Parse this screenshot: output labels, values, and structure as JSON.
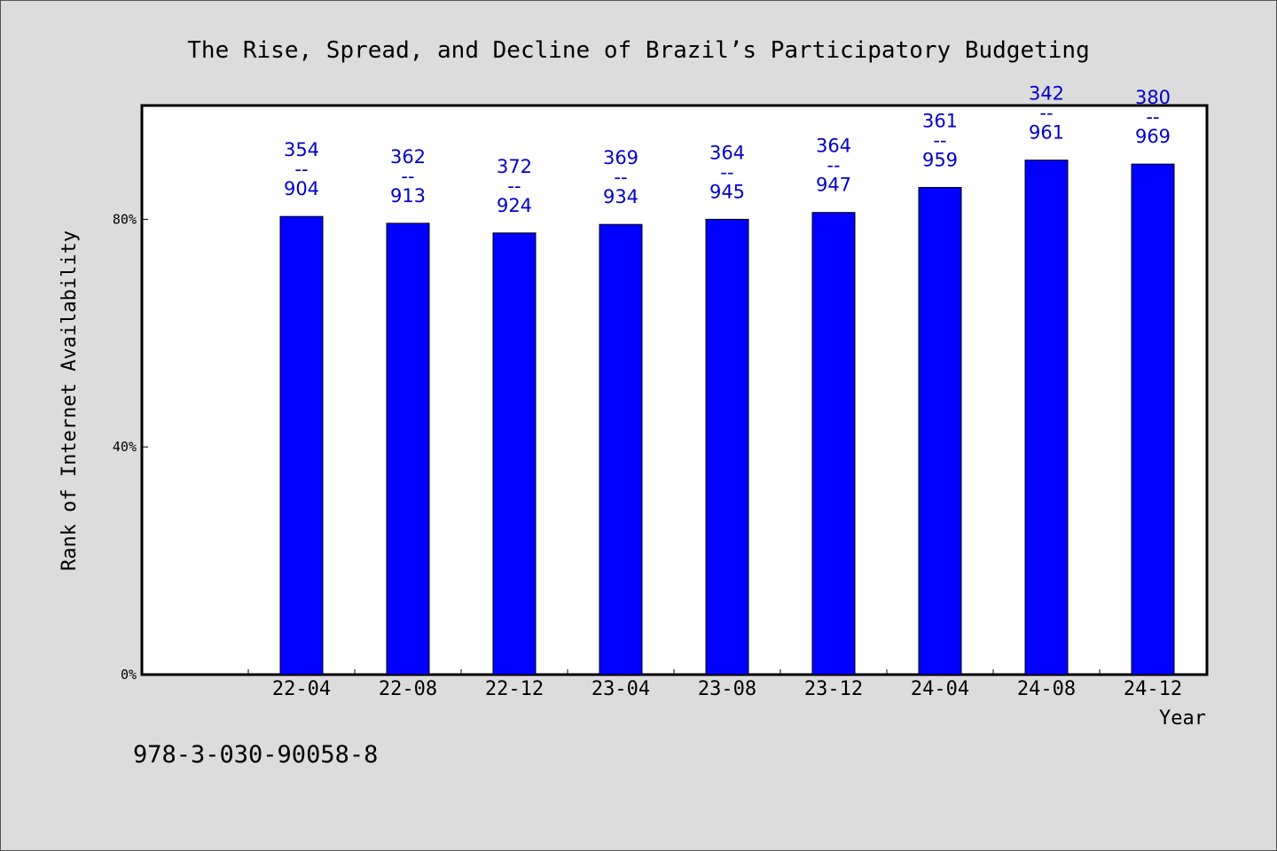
{
  "chart_data": {
    "type": "bar",
    "title": "The Rise, Spread, and Decline of Brazil’s Participatory Budgeting",
    "xlabel": "Year",
    "ylabel": "Rank of Internet Availability",
    "categories": [
      "22-04",
      "22-08",
      "22-12",
      "23-04",
      "23-08",
      "23-12",
      "24-04",
      "24-08",
      "24-12"
    ],
    "values": [
      80.5,
      79.3,
      77.6,
      79.1,
      80.0,
      81.2,
      85.6,
      90.4,
      89.7
    ],
    "labels_top": [
      "354",
      "362",
      "372",
      "369",
      "364",
      "364",
      "361",
      "342",
      "380"
    ],
    "labels_sep": "--",
    "labels_bottom": [
      "904",
      "913",
      "924",
      "934",
      "945",
      "947",
      "959",
      "961",
      "969"
    ],
    "ylim": [
      0,
      100
    ],
    "yticks": [
      0,
      40,
      80
    ],
    "ytick_labels": [
      "0%",
      "40%",
      "80%"
    ],
    "grid": false,
    "colors": {
      "bar": "#0000ff",
      "bar_edge": "#000000",
      "label": "#0000cc",
      "plot_bg": "#ffffff",
      "page_bg": "#dcdcdc"
    }
  },
  "footer": {
    "code": "978-3-030-90058-8"
  }
}
